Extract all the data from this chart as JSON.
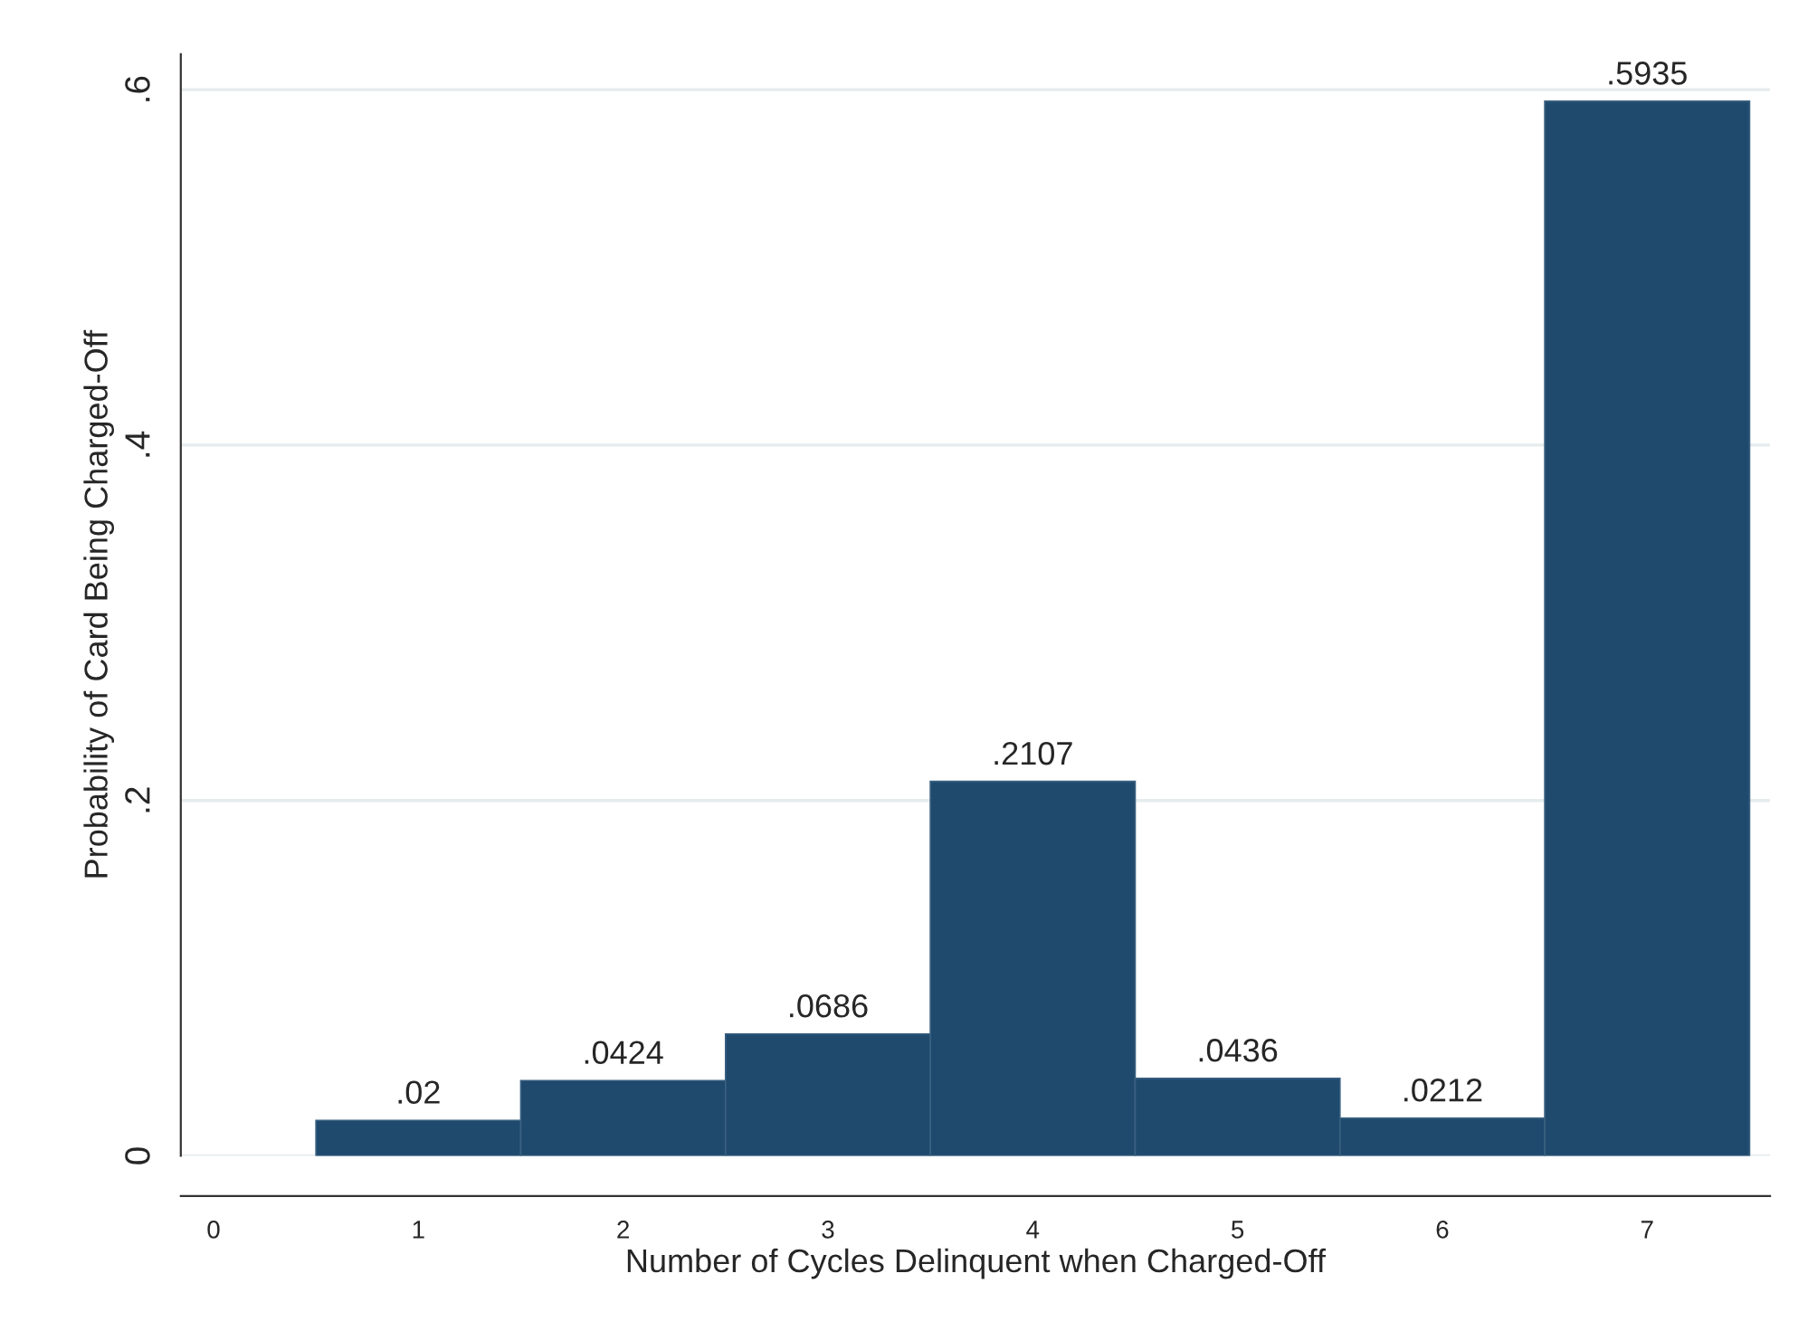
{
  "chart_data": {
    "type": "histogram",
    "xlabel": "Number of Cycles Delinquent when Charged-Off",
    "ylabel": "Probability of Card Being Charged-Off",
    "bins": [
      0.5,
      1.5,
      2.5,
      3.5,
      4.5,
      5.5,
      6.5,
      7.5
    ],
    "values": [
      0.02,
      0.0424,
      0.0686,
      0.2107,
      0.0436,
      0.0212,
      0.5935
    ],
    "value_labels": [
      ".02",
      ".0424",
      ".0686",
      ".2107",
      ".0436",
      ".0212",
      ".5935"
    ],
    "color": "#1f4a6e",
    "xlim": [
      -0.16,
      7.6
    ],
    "xticks": [
      0,
      1,
      2,
      3,
      4,
      5,
      6,
      7
    ],
    "ylim": [
      0,
      0.62
    ],
    "yticks": [
      {
        "value": 0,
        "label": "0"
      },
      {
        "value": 0.2,
        "label": ".2"
      },
      {
        "value": 0.4,
        "label": ".4"
      },
      {
        "value": 0.6,
        "label": ".6"
      }
    ],
    "grid": "y",
    "legend": false
  }
}
